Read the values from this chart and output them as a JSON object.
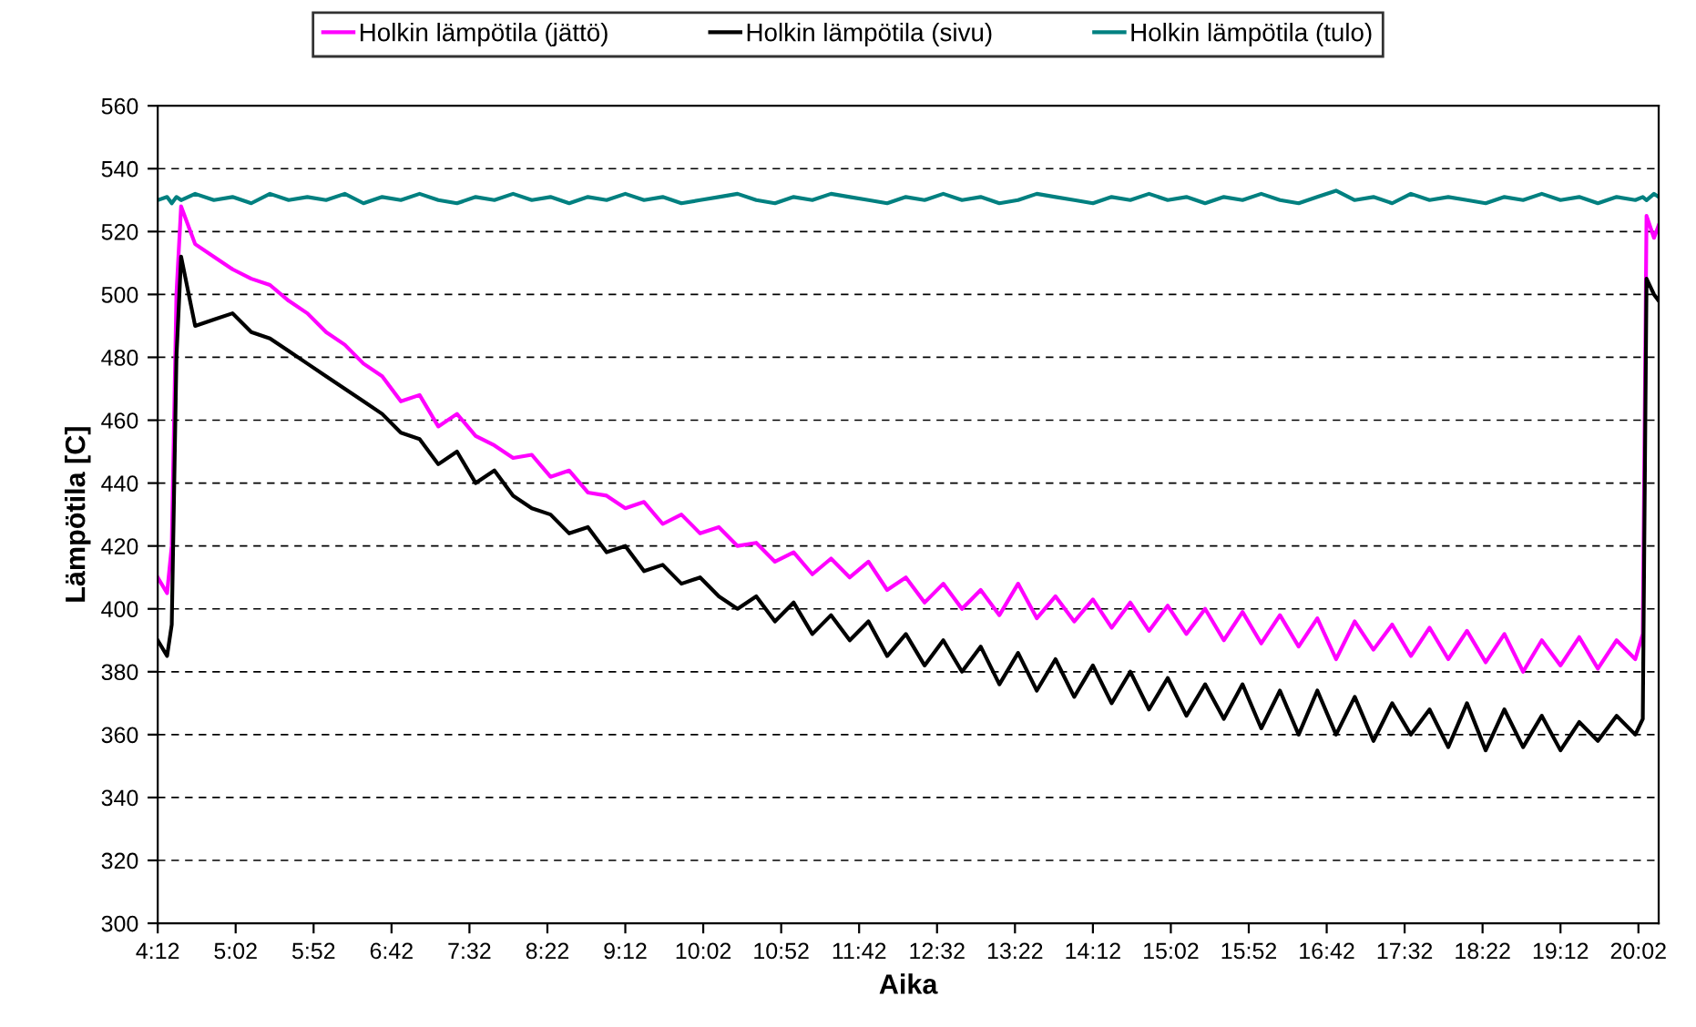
{
  "chart_data": {
    "type": "line",
    "xlabel": "Aika",
    "ylabel": "Lämpötila [C]",
    "x": [
      4.2,
      4.3,
      4.35,
      4.4,
      4.45,
      4.6,
      4.8,
      5.0,
      5.2,
      5.4,
      5.6,
      5.8,
      6.0,
      6.2,
      6.4,
      6.6,
      6.8,
      7.0,
      7.2,
      7.4,
      7.6,
      7.8,
      8.0,
      8.2,
      8.4,
      8.6,
      8.8,
      9.0,
      9.2,
      9.4,
      9.6,
      9.8,
      10.0,
      10.2,
      10.4,
      10.6,
      10.8,
      11.0,
      11.2,
      11.4,
      11.6,
      11.8,
      12.0,
      12.2,
      12.4,
      12.6,
      12.8,
      13.0,
      13.2,
      13.4,
      13.6,
      13.8,
      14.0,
      14.2,
      14.4,
      14.6,
      14.8,
      15.0,
      15.2,
      15.4,
      15.6,
      15.8,
      16.0,
      16.2,
      16.4,
      16.6,
      16.8,
      17.0,
      17.2,
      17.4,
      17.6,
      17.8,
      18.0,
      18.2,
      18.4,
      18.6,
      18.8,
      19.0,
      19.2,
      19.4,
      19.6,
      19.8,
      20.0,
      20.08,
      20.12,
      20.2,
      20.25
    ],
    "series": [
      {
        "name": "Holkin lämpötila (jättö)",
        "color": "#ff00ff",
        "values": [
          410,
          405,
          420,
          500,
          528,
          516,
          512,
          508,
          505,
          503,
          498,
          494,
          488,
          484,
          478,
          474,
          466,
          468,
          458,
          462,
          455,
          452,
          448,
          449,
          442,
          444,
          437,
          436,
          432,
          434,
          427,
          430,
          424,
          426,
          420,
          421,
          415,
          418,
          411,
          416,
          410,
          415,
          406,
          410,
          402,
          408,
          400,
          406,
          398,
          408,
          397,
          404,
          396,
          403,
          394,
          402,
          393,
          401,
          392,
          400,
          390,
          399,
          389,
          398,
          388,
          397,
          384,
          396,
          387,
          395,
          385,
          394,
          384,
          393,
          383,
          392,
          380,
          390,
          382,
          391,
          381,
          390,
          384,
          392,
          525,
          518,
          522
        ]
      },
      {
        "name": "Holkin lämpötila (sivu)",
        "color": "#000000",
        "values": [
          390,
          385,
          395,
          480,
          512,
          490,
          492,
          494,
          488,
          486,
          482,
          478,
          474,
          470,
          466,
          462,
          456,
          454,
          446,
          450,
          440,
          444,
          436,
          432,
          430,
          424,
          426,
          418,
          420,
          412,
          414,
          408,
          410,
          404,
          400,
          404,
          396,
          402,
          392,
          398,
          390,
          396,
          385,
          392,
          382,
          390,
          380,
          388,
          376,
          386,
          374,
          384,
          372,
          382,
          370,
          380,
          368,
          378,
          366,
          376,
          365,
          376,
          362,
          374,
          360,
          374,
          360,
          372,
          358,
          370,
          360,
          368,
          356,
          370,
          355,
          368,
          356,
          366,
          355,
          364,
          358,
          366,
          360,
          365,
          505,
          500,
          498
        ]
      },
      {
        "name": "Holkin lämpötila (tulo)",
        "color": "#008080",
        "values": [
          530,
          531,
          529,
          531,
          530,
          532,
          530,
          531,
          529,
          532,
          530,
          531,
          530,
          532,
          529,
          531,
          530,
          532,
          530,
          529,
          531,
          530,
          532,
          530,
          531,
          529,
          531,
          530,
          532,
          530,
          531,
          529,
          530,
          531,
          532,
          530,
          529,
          531,
          530,
          532,
          531,
          530,
          529,
          531,
          530,
          532,
          530,
          531,
          529,
          530,
          532,
          531,
          530,
          529,
          531,
          530,
          532,
          530,
          531,
          529,
          531,
          530,
          532,
          530,
          529,
          531,
          533,
          530,
          531,
          529,
          532,
          530,
          531,
          530,
          529,
          531,
          530,
          532,
          530,
          531,
          529,
          531,
          530,
          531,
          530,
          532,
          531
        ]
      }
    ],
    "xlim": [
      4.2,
      20.25
    ],
    "ylim": [
      300,
      560
    ],
    "xticks": [
      {
        "value": 4.2,
        "label": "4:12"
      },
      {
        "value": 5.0333,
        "label": "5:02"
      },
      {
        "value": 5.8667,
        "label": "5:52"
      },
      {
        "value": 6.7,
        "label": "6:42"
      },
      {
        "value": 7.5333,
        "label": "7:32"
      },
      {
        "value": 8.3667,
        "label": "8:22"
      },
      {
        "value": 9.2,
        "label": "9:12"
      },
      {
        "value": 10.0333,
        "label": "10:02"
      },
      {
        "value": 10.8667,
        "label": "10:52"
      },
      {
        "value": 11.7,
        "label": "11:42"
      },
      {
        "value": 12.5333,
        "label": "12:32"
      },
      {
        "value": 13.3667,
        "label": "13:22"
      },
      {
        "value": 14.2,
        "label": "14:12"
      },
      {
        "value": 15.0333,
        "label": "15:02"
      },
      {
        "value": 15.8667,
        "label": "15:52"
      },
      {
        "value": 16.7,
        "label": "16:42"
      },
      {
        "value": 17.5333,
        "label": "17:32"
      },
      {
        "value": 18.3667,
        "label": "18:22"
      },
      {
        "value": 19.2,
        "label": "19:12"
      },
      {
        "value": 20.0333,
        "label": "20:02"
      }
    ],
    "yticks": [
      300,
      320,
      340,
      360,
      380,
      400,
      420,
      440,
      460,
      480,
      500,
      520,
      540,
      560
    ],
    "grid": "y",
    "legend": "top",
    "line_style": "solid",
    "marker": "none"
  }
}
